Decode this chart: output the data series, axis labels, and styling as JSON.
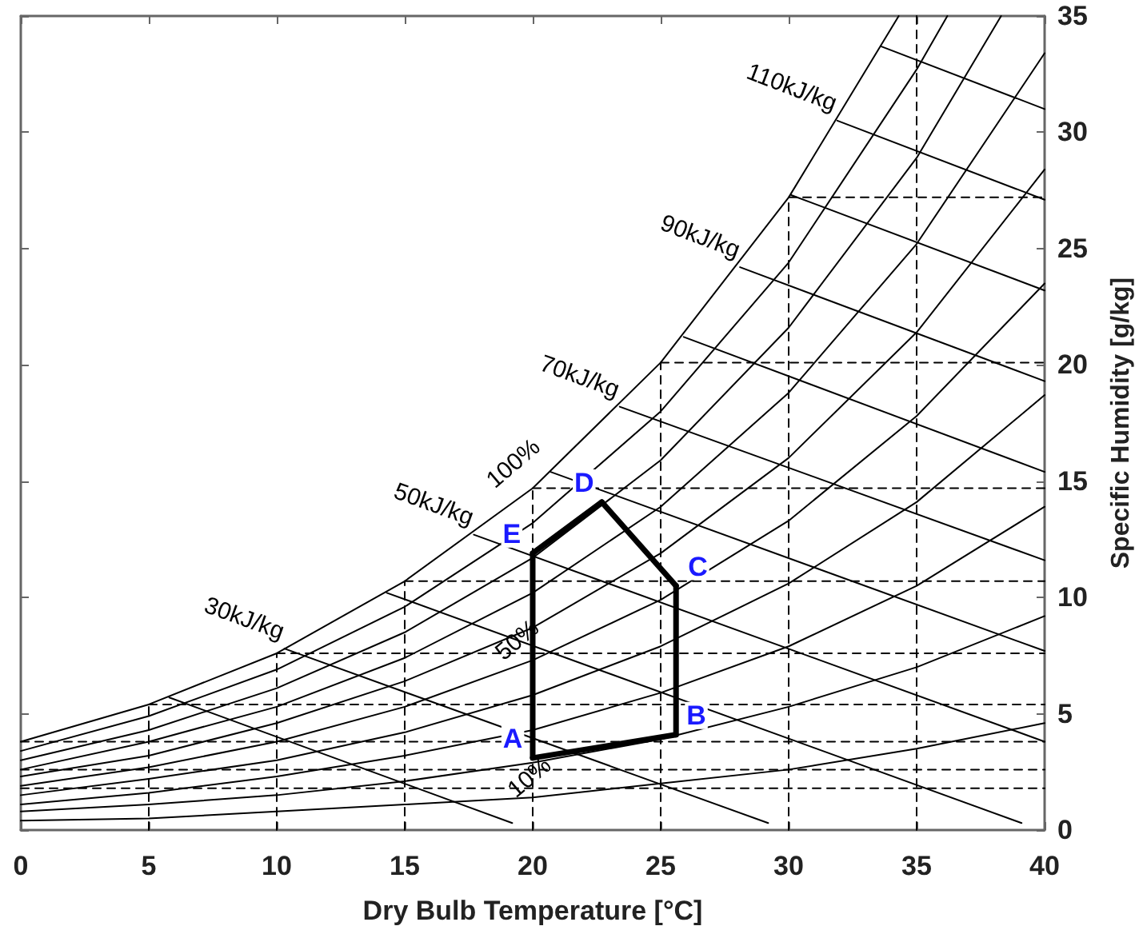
{
  "chart_data": {
    "type": "line",
    "xlabel": "Dry Bulb Temperature [°C]",
    "ylabel": "Specific Humidity [g/kg]",
    "xlim": [
      0,
      40
    ],
    "xticks": [
      0,
      5,
      10,
      15,
      20,
      25,
      30,
      35,
      40
    ],
    "ylim": [
      0,
      35
    ],
    "yticks": [
      0,
      5,
      10,
      15,
      20,
      25,
      30,
      35
    ],
    "grid": false,
    "marker": "none",
    "line_style": "solid",
    "series": [
      {
        "name": "100%",
        "color": "#000000",
        "x": [
          0,
          5,
          10,
          15,
          20,
          25,
          30,
          34.3
        ],
        "values": [
          3.8,
          5.4,
          7.6,
          10.7,
          14.7,
          20.1,
          27.2,
          35
        ]
      },
      {
        "color": "#000000",
        "x": [
          0,
          5,
          10,
          15,
          20,
          25,
          30,
          35,
          36.2
        ],
        "values": [
          3.4,
          4.9,
          6.9,
          9.6,
          13.2,
          18.0,
          24.4,
          32.7,
          35
        ]
      },
      {
        "color": "#000000",
        "x": [
          0,
          5,
          10,
          15,
          20,
          25,
          30,
          35,
          38.3
        ],
        "values": [
          3.0,
          4.3,
          6.1,
          8.5,
          11.7,
          15.9,
          21.6,
          28.9,
          35
        ]
      },
      {
        "color": "#000000",
        "x": [
          0,
          5,
          10,
          15,
          20,
          25,
          30,
          35,
          40
        ],
        "values": [
          2.6,
          3.8,
          5.3,
          7.4,
          10.2,
          13.9,
          18.8,
          25.2,
          33.4
        ]
      },
      {
        "color": "#000000",
        "x": [
          0,
          5,
          10,
          15,
          20,
          25,
          30,
          35,
          40
        ],
        "values": [
          2.3,
          3.2,
          4.6,
          6.4,
          8.7,
          11.9,
          16.0,
          21.4,
          28.4
        ]
      },
      {
        "name": "50%",
        "color": "#000000",
        "x": [
          0,
          5,
          10,
          15,
          20,
          25,
          30,
          35,
          40
        ],
        "values": [
          1.9,
          2.7,
          3.8,
          5.3,
          7.3,
          9.9,
          13.3,
          17.8,
          23.5
        ]
      },
      {
        "color": "#000000",
        "x": [
          0,
          5,
          10,
          15,
          20,
          25,
          30,
          35,
          40
        ],
        "values": [
          1.5,
          2.2,
          3.0,
          4.2,
          5.8,
          7.9,
          10.6,
          14.1,
          18.7
        ]
      },
      {
        "color": "#000000",
        "x": [
          0,
          5,
          10,
          15,
          20,
          25,
          30,
          35,
          40
        ],
        "values": [
          1.1,
          1.6,
          2.3,
          3.2,
          4.3,
          5.9,
          7.9,
          10.5,
          13.9
        ]
      },
      {
        "color": "#000000",
        "x": [
          0,
          5,
          10,
          15,
          20,
          25,
          30,
          35,
          40
        ],
        "values": [
          0.8,
          1.1,
          1.5,
          2.1,
          2.9,
          3.9,
          5.3,
          7.0,
          9.2
        ]
      },
      {
        "name": "10%",
        "color": "#000000",
        "x": [
          0,
          5,
          10,
          15,
          20,
          25,
          30,
          35,
          40
        ],
        "values": [
          0.4,
          0.5,
          0.8,
          1.1,
          1.4,
          2.0,
          2.6,
          3.5,
          4.6
        ]
      },
      {
        "color": "#000000",
        "x": [
          5.8,
          19.2
        ],
        "values": [
          5.7,
          0.3
        ]
      },
      {
        "name": "30kJ/kg",
        "color": "#000000",
        "x": [
          10.3,
          29.2
        ],
        "values": [
          7.8,
          0.3
        ]
      },
      {
        "color": "#000000",
        "x": [
          14.3,
          39.1
        ],
        "values": [
          10.2,
          0.3
        ]
      },
      {
        "name": "50kJ/kg",
        "color": "#000000",
        "x": [
          17.7,
          40
        ],
        "values": [
          12.7,
          3.8
        ]
      },
      {
        "color": "#000000",
        "x": [
          20.7,
          40
        ],
        "values": [
          15.4,
          7.7
        ]
      },
      {
        "name": "70kJ/kg",
        "color": "#000000",
        "x": [
          23.4,
          40
        ],
        "values": [
          18.2,
          11.6
        ]
      },
      {
        "color": "#000000",
        "x": [
          25.9,
          40
        ],
        "values": [
          21.2,
          15.4
        ]
      },
      {
        "name": "90kJ/kg",
        "color": "#000000",
        "x": [
          28.1,
          40
        ],
        "values": [
          24.2,
          19.3
        ]
      },
      {
        "color": "#000000",
        "x": [
          30.1,
          40
        ],
        "values": [
          27.3,
          23.2
        ]
      },
      {
        "name": "110kJ/kg",
        "color": "#000000",
        "x": [
          31.9,
          40
        ],
        "values": [
          30.5,
          27.1
        ]
      },
      {
        "color": "#000000",
        "x": [
          33.6,
          40
        ],
        "values": [
          33.7,
          31.0
        ]
      },
      {
        "color": "#000000",
        "line_style": "dashed",
        "x": [
          5,
          5
        ],
        "values": [
          0,
          5.4
        ]
      },
      {
        "color": "#000000",
        "line_style": "dashed",
        "x": [
          10,
          10
        ],
        "values": [
          0,
          7.6
        ]
      },
      {
        "color": "#000000",
        "line_style": "dashed",
        "x": [
          15,
          15
        ],
        "values": [
          0,
          10.7
        ]
      },
      {
        "color": "#000000",
        "line_style": "dashed",
        "x": [
          20,
          20
        ],
        "values": [
          0,
          14.7
        ]
      },
      {
        "color": "#000000",
        "line_style": "dashed",
        "x": [
          25,
          25
        ],
        "values": [
          0,
          20.1
        ]
      },
      {
        "color": "#000000",
        "line_style": "dashed",
        "x": [
          30,
          30
        ],
        "values": [
          0,
          27.2
        ]
      },
      {
        "color": "#000000",
        "line_style": "dashed",
        "x": [
          35,
          35
        ],
        "values": [
          0,
          35
        ]
      },
      {
        "color": "#000000",
        "line_style": "dashed",
        "x": [
          5,
          40
        ],
        "values": [
          5.4,
          5.4
        ]
      },
      {
        "color": "#000000",
        "line_style": "dashed",
        "x": [
          10,
          40
        ],
        "values": [
          7.6,
          7.6
        ]
      },
      {
        "color": "#000000",
        "line_style": "dashed",
        "x": [
          15,
          40
        ],
        "values": [
          10.7,
          10.7
        ]
      },
      {
        "color": "#000000",
        "line_style": "dashed",
        "x": [
          20,
          40
        ],
        "values": [
          14.7,
          14.7
        ]
      },
      {
        "color": "#000000",
        "line_style": "dashed",
        "x": [
          25,
          40
        ],
        "values": [
          20.1,
          20.1
        ]
      },
      {
        "color": "#000000",
        "line_style": "dashed",
        "x": [
          30,
          40
        ],
        "values": [
          27.2,
          27.2
        ]
      },
      {
        "color": "#000000",
        "line_style": "dashed",
        "x": [
          0,
          40
        ],
        "values": [
          3.8,
          3.8
        ]
      },
      {
        "color": "#000000",
        "line_style": "dashed",
        "x": [
          0,
          40
        ],
        "values": [
          2.6,
          2.6
        ]
      },
      {
        "color": "#000000",
        "line_style": "dashed",
        "x": [
          0,
          40
        ],
        "values": [
          1.8,
          1.8
        ]
      },
      {
        "color": "#000000",
        "x": [
          20,
          25.6
        ],
        "values": [
          3.1,
          4.1
        ],
        "value_labels": [
          "A",
          null
        ]
      },
      {
        "color": "#000000",
        "x": [
          25.6,
          25.6
        ],
        "values": [
          4.1,
          10.5
        ],
        "value_labels": [
          "B",
          null
        ]
      },
      {
        "color": "#000000",
        "x": [
          25.6,
          22.7
        ],
        "values": [
          10.5,
          14.1
        ],
        "value_labels": [
          "C",
          null
        ]
      },
      {
        "color": "#000000",
        "x": [
          22.7,
          20
        ],
        "values": [
          14.1,
          11.9
        ],
        "value_labels": [
          "D",
          null
        ]
      },
      {
        "color": "#000000",
        "x": [
          20,
          20
        ],
        "values": [
          11.9,
          3.1
        ],
        "value_labels": [
          "E",
          null
        ]
      }
    ]
  }
}
